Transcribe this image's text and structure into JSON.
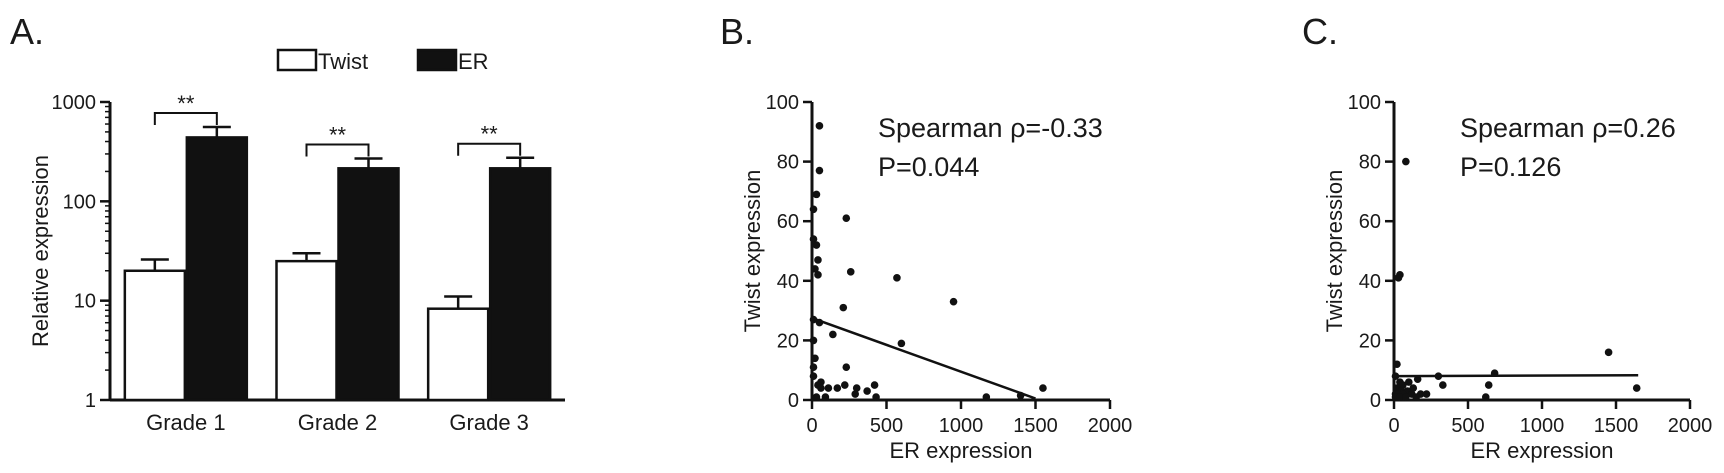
{
  "panels": [
    {
      "label": "A."
    },
    {
      "label": "B."
    },
    {
      "label": "C."
    }
  ],
  "chart_data": [
    {
      "type": "bar",
      "ylabel": "Relative expression",
      "xlabel": "",
      "yscale": "log",
      "ylim": [
        1,
        1000
      ],
      "yticks": [
        1,
        10,
        100,
        1000
      ],
      "categories": [
        "Grade 1",
        "Grade 2",
        "Grade 3"
      ],
      "series": [
        {
          "name": "Twist",
          "color": "#ffffff",
          "values": [
            20,
            25,
            8.3
          ],
          "error": [
            26,
            30,
            11
          ]
        },
        {
          "name": "ER",
          "color": "#111111",
          "values": [
            440,
            215,
            215
          ],
          "error": [
            560,
            270,
            275
          ]
        }
      ],
      "annotations": [
        "**",
        "**",
        "**"
      ],
      "legend": "top"
    },
    {
      "type": "scatter",
      "xlabel": "ER expression",
      "ylabel": "Twist expression",
      "xlim": [
        0,
        2000
      ],
      "ylim": [
        0,
        100
      ],
      "xticks": [
        0,
        500,
        1000,
        1500,
        2000
      ],
      "yticks": [
        0,
        20,
        40,
        60,
        80,
        100
      ],
      "stat_lines": [
        "Spearman ρ=-0.33",
        "P=0.044"
      ],
      "fit_line": [
        [
          0,
          27.5
        ],
        [
          1500,
          0.5
        ]
      ],
      "points": [
        [
          50,
          92
        ],
        [
          50,
          77
        ],
        [
          30,
          69
        ],
        [
          10,
          64
        ],
        [
          10,
          54
        ],
        [
          30,
          52
        ],
        [
          40,
          47
        ],
        [
          20,
          44
        ],
        [
          40,
          42
        ],
        [
          230,
          61
        ],
        [
          260,
          43
        ],
        [
          570,
          41
        ],
        [
          950,
          33
        ],
        [
          210,
          31
        ],
        [
          10,
          27
        ],
        [
          50,
          26
        ],
        [
          600,
          19
        ],
        [
          10,
          20
        ],
        [
          140,
          22
        ],
        [
          20,
          14
        ],
        [
          10,
          11
        ],
        [
          230,
          11
        ],
        [
          10,
          8
        ],
        [
          60,
          6
        ],
        [
          40,
          5
        ],
        [
          60,
          4
        ],
        [
          110,
          4
        ],
        [
          170,
          4
        ],
        [
          220,
          5
        ],
        [
          290,
          2
        ],
        [
          300,
          4
        ],
        [
          420,
          5
        ],
        [
          370,
          3
        ],
        [
          430,
          1
        ],
        [
          90,
          1
        ],
        [
          30,
          1
        ],
        [
          1550,
          4
        ],
        [
          1400,
          1.5
        ],
        [
          1170,
          1
        ]
      ]
    },
    {
      "type": "scatter",
      "xlabel": "ER expression",
      "ylabel": "Twist expression",
      "xlim": [
        0,
        2000
      ],
      "ylim": [
        0,
        100
      ],
      "xticks": [
        0,
        500,
        1000,
        1500,
        2000
      ],
      "yticks": [
        0,
        20,
        40,
        60,
        80,
        100
      ],
      "stat_lines": [
        "Spearman ρ=0.26",
        "P=0.126"
      ],
      "fit_line": [
        [
          0,
          8
        ],
        [
          1650,
          8.3
        ]
      ],
      "points": [
        [
          80,
          80
        ],
        [
          40,
          42
        ],
        [
          30,
          41
        ],
        [
          20,
          12
        ],
        [
          10,
          8
        ],
        [
          40,
          6
        ],
        [
          60,
          5
        ],
        [
          100,
          6
        ],
        [
          130,
          4
        ],
        [
          160,
          7
        ],
        [
          20,
          4
        ],
        [
          50,
          3
        ],
        [
          90,
          3
        ],
        [
          10,
          2
        ],
        [
          30,
          2
        ],
        [
          60,
          2
        ],
        [
          120,
          2
        ],
        [
          180,
          2
        ],
        [
          220,
          2
        ],
        [
          10,
          1
        ],
        [
          40,
          1
        ],
        [
          80,
          1
        ],
        [
          150,
          1
        ],
        [
          330,
          5
        ],
        [
          300,
          8
        ],
        [
          680,
          9
        ],
        [
          640,
          5
        ],
        [
          1450,
          16
        ],
        [
          1640,
          4
        ],
        [
          620,
          1
        ]
      ]
    }
  ]
}
